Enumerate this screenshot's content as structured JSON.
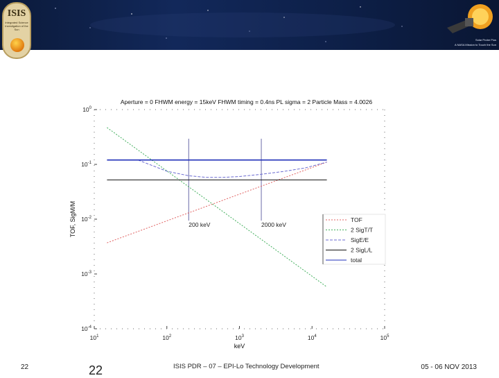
{
  "banner": {
    "logo_title": "ISIS",
    "logo_subtitle": "Integrated Science Investigation of the Sun",
    "probe_line1": "Solar Probe Plus",
    "probe_line2": "A NASA Mission to Touch the Sun"
  },
  "footer": {
    "slide_number_small": "22",
    "slide_number_large": "22",
    "center_text": "ISIS PDR – 07 – EPI-Lo Technology Development",
    "date": "05 - 06 NOV 2013"
  },
  "chart_data": {
    "type": "line",
    "title": "Aperture = 0   FHWM energy = 15keV   FHWM timing = 0.4ns   PL sigma = 2   Particle Mass = 4.0026",
    "xlabel": "keV",
    "ylabel": "TOF, SigM/M",
    "xscale": "log",
    "yscale": "log",
    "xlim": [
      10,
      100000
    ],
    "ylim": [
      0.0001,
      1
    ],
    "x_ticks": [
      {
        "value": 10,
        "base": "10",
        "exp": "1"
      },
      {
        "value": 100,
        "base": "10",
        "exp": "2"
      },
      {
        "value": 1000,
        "base": "10",
        "exp": "3"
      },
      {
        "value": 10000,
        "base": "10",
        "exp": "4"
      },
      {
        "value": 100000,
        "base": "10",
        "exp": "5"
      }
    ],
    "y_ticks": [
      {
        "value": 1,
        "base": "10",
        "exp": "0"
      },
      {
        "value": 0.1,
        "base": "10",
        "exp": "-1"
      },
      {
        "value": 0.01,
        "base": "10",
        "exp": "-2"
      },
      {
        "value": 0.001,
        "base": "10",
        "exp": "-3"
      },
      {
        "value": 0.0001,
        "base": "10",
        "exp": "-4"
      }
    ],
    "grid": false,
    "legend_position": "right",
    "series": [
      {
        "name": "TOF",
        "color": "#e06060",
        "dash": "2,2",
        "x": [
          15,
          16000
        ],
        "y": [
          0.0037,
          0.11
        ]
      },
      {
        "name": "2 SigT/T",
        "color": "#3fae5a",
        "dash": "2,2",
        "x": [
          15,
          16000
        ],
        "y": [
          0.47,
          0.00058
        ]
      },
      {
        "name": "SigE/E",
        "color": "#6a6ad0",
        "dash": "4,2",
        "x": [
          40,
          100,
          200,
          350,
          600,
          1000,
          2000,
          4000,
          8000,
          16000
        ],
        "y": [
          0.12,
          0.075,
          0.062,
          0.058,
          0.058,
          0.06,
          0.066,
          0.074,
          0.086,
          0.11
        ]
      },
      {
        "name": "2 SigL/L",
        "color": "#111111",
        "dash": "",
        "x": [
          15,
          16000
        ],
        "y": [
          0.052,
          0.052
        ]
      },
      {
        "name": "total",
        "color": "#1f2fb8",
        "dash": "",
        "x": [
          15,
          16000
        ],
        "y": [
          0.12,
          0.12
        ]
      }
    ],
    "vertical_markers": [
      {
        "x": 200,
        "label": "200 keV"
      },
      {
        "x": 2000,
        "label": "2000 keV"
      }
    ],
    "colors": {
      "marker_line": "#6a6aa8",
      "axis_dots": "#666666"
    }
  }
}
